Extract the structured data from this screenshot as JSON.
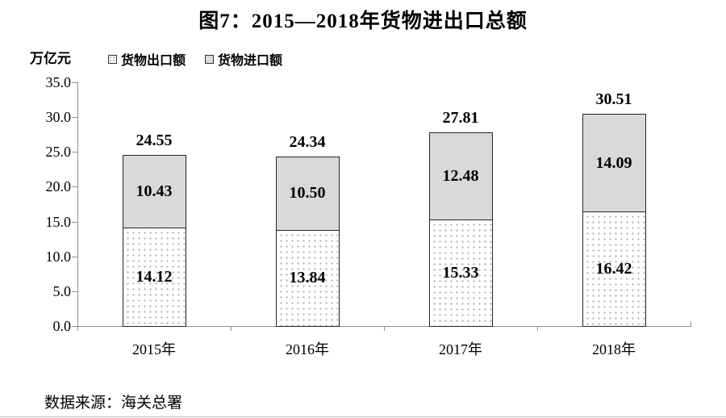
{
  "page": {
    "title": "图7：2015—2018年货物进出口总额",
    "source_note": "数据来源：海关总署"
  },
  "chart_data": {
    "type": "bar",
    "stacked": true,
    "title": "图7：2015—2018年货物进出口总额",
    "unit_label": "万亿元",
    "categories": [
      "2015年",
      "2016年",
      "2017年",
      "2018年"
    ],
    "series": [
      {
        "name": "货物出口额",
        "style": "dotted-white",
        "values": [
          14.12,
          13.84,
          15.33,
          16.42
        ]
      },
      {
        "name": "货物进口额",
        "style": "solid-gray",
        "values": [
          10.43,
          10.5,
          12.48,
          14.09
        ]
      }
    ],
    "totals": [
      24.55,
      24.34,
      27.81,
      30.51
    ],
    "ylim": [
      0,
      35
    ],
    "ytick_step": 5,
    "ytick_labels": [
      "0.0",
      "5.0",
      "10.0",
      "15.0",
      "20.0",
      "25.0",
      "30.0",
      "35.0"
    ],
    "grid": false,
    "legend_position": "top-left",
    "colors": {
      "import_fill": "#d9d9d9",
      "export_fill": "#ffffff",
      "bar_border": "#262626",
      "axis": "#909090",
      "text": "#000000"
    },
    "source": "数据来源：海关总署"
  }
}
